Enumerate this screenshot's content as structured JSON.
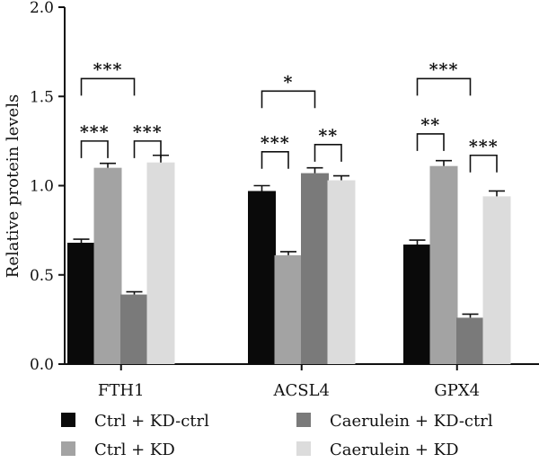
{
  "chart_data": {
    "type": "bar",
    "categories": [
      "FTH1",
      "ACSL4",
      "GPX4"
    ],
    "ylabel": "Relative protein levels",
    "xlabel": "",
    "ylim": [
      0,
      2.0
    ],
    "yticks": [
      "0.0",
      "0.5",
      "1.0",
      "1.5",
      "2.0"
    ],
    "legend_placement": "bottom",
    "grid": false,
    "series": [
      {
        "name": "Ctrl + KD-ctrl",
        "color": "#0a0a0a",
        "values": [
          0.68,
          0.97,
          0.67
        ],
        "errors": [
          0.02,
          0.03,
          0.025
        ]
      },
      {
        "name": "Ctrl + KD",
        "color": "#a3a3a3",
        "values": [
          1.1,
          0.61,
          1.11
        ],
        "errors": [
          0.025,
          0.02,
          0.03
        ]
      },
      {
        "name": "Caerulein + KD-ctrl",
        "color": "#7a7a7a",
        "values": [
          0.39,
          1.07,
          0.26
        ],
        "errors": [
          0.015,
          0.03,
          0.02
        ]
      },
      {
        "name": "Caerulein + KD",
        "color": "#dcdcdc",
        "values": [
          1.13,
          1.03,
          0.94
        ],
        "errors": [
          0.04,
          0.025,
          0.03
        ]
      }
    ],
    "annotations": [
      {
        "category": 0,
        "from": 0,
        "to": 2,
        "level": 1.6,
        "label": "***"
      },
      {
        "category": 0,
        "from": 0,
        "to": 1,
        "level": 1.25,
        "label": "***"
      },
      {
        "category": 0,
        "from": 2,
        "to": 3,
        "level": 1.25,
        "label": "***"
      },
      {
        "category": 1,
        "from": 0,
        "to": 2,
        "level": 1.53,
        "label": "*"
      },
      {
        "category": 1,
        "from": 0,
        "to": 1,
        "level": 1.19,
        "label": "***"
      },
      {
        "category": 1,
        "from": 2,
        "to": 3,
        "level": 1.23,
        "label": "**"
      },
      {
        "category": 2,
        "from": 0,
        "to": 2,
        "level": 1.6,
        "label": "***"
      },
      {
        "category": 2,
        "from": 0,
        "to": 1,
        "level": 1.29,
        "label": "**"
      },
      {
        "category": 2,
        "from": 2,
        "to": 3,
        "level": 1.17,
        "label": "***"
      }
    ]
  }
}
